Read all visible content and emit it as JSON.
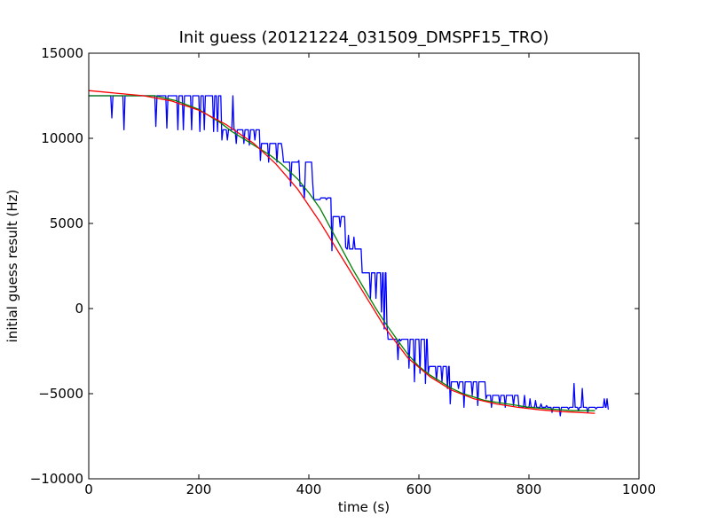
{
  "chart_data": {
    "type": "line",
    "title": "Init guess (20121224_031509_DMSPF15_TRO)",
    "xlabel": "time (s)",
    "ylabel": "initial guess result (Hz)",
    "xlim": [
      0,
      1000
    ],
    "ylim": [
      -10000,
      15000
    ],
    "xticks": [
      0,
      200,
      400,
      600,
      800,
      1000
    ],
    "yticks": [
      -10000,
      -5000,
      0,
      5000,
      10000,
      15000
    ],
    "xtick_labels": [
      "0",
      "200",
      "400",
      "600",
      "800",
      "1000"
    ],
    "ytick_labels": [
      "−10000",
      "−5000",
      "0",
      "5000",
      "10000",
      "15000"
    ],
    "grid": false,
    "legend": "none",
    "series": [
      {
        "color": "#0000ff",
        "x": [
          0,
          40,
          42,
          44,
          62,
          64,
          66,
          120,
          122,
          124,
          140,
          142,
          144,
          160,
          162,
          164,
          170,
          172,
          174,
          185,
          187,
          189,
          200,
          202,
          204,
          208,
          210,
          212,
          225,
          227,
          229,
          232,
          234,
          236,
          240,
          242,
          244,
          250,
          252,
          254,
          260,
          262,
          264,
          266,
          268,
          270,
          280,
          282,
          284,
          290,
          292,
          294,
          300,
          302,
          304,
          310,
          312,
          314,
          325,
          327,
          329,
          340,
          342,
          344,
          350,
          352,
          354,
          365,
          367,
          369,
          380,
          382,
          384,
          390,
          392,
          394,
          405,
          407,
          409,
          420,
          422,
          424,
          430,
          432,
          434,
          440,
          442,
          444,
          455,
          457,
          459,
          465,
          467,
          469,
          470,
          472,
          474,
          480,
          482,
          484,
          495,
          497,
          499,
          510,
          512,
          514,
          520,
          522,
          524,
          530,
          532,
          534,
          535,
          537,
          539,
          540,
          542,
          544,
          560,
          562,
          564,
          565,
          567,
          569,
          570,
          572,
          574,
          580,
          582,
          584,
          590,
          592,
          594,
          600,
          602,
          604,
          610,
          612,
          614,
          615,
          617,
          619,
          630,
          632,
          634,
          640,
          642,
          644,
          650,
          652,
          654,
          655,
          657,
          659,
          670,
          672,
          674,
          680,
          682,
          684,
          695,
          697,
          699,
          705,
          707,
          709,
          720,
          722,
          724,
          730,
          732,
          734,
          745,
          747,
          749,
          755,
          757,
          759,
          770,
          772,
          774,
          780,
          782,
          784,
          790,
          792,
          794,
          800,
          802,
          804,
          810,
          812,
          814,
          820,
          822,
          824,
          830,
          832,
          834,
          840,
          842,
          844,
          855,
          857,
          859,
          870,
          872,
          874,
          880,
          882,
          884,
          888,
          890,
          892,
          895,
          897,
          899,
          905,
          907,
          909,
          920,
          922,
          924,
          935,
          937,
          939,
          940,
          942,
          944,
          945
        ],
        "y": [
          12500,
          12500,
          11200,
          12500,
          12500,
          10500,
          12500,
          12500,
          10700,
          12500,
          12500,
          10600,
          12500,
          12500,
          10500,
          12500,
          12500,
          10500,
          12500,
          12500,
          10500,
          12500,
          12500,
          10400,
          12500,
          12500,
          10500,
          12500,
          12500,
          10400,
          12500,
          12500,
          10400,
          12500,
          12500,
          9900,
          10500,
          10500,
          9900,
          10500,
          10500,
          12500,
          10500,
          10500,
          9700,
          10500,
          10500,
          9700,
          10500,
          10500,
          9600,
          10500,
          10500,
          9900,
          10500,
          10500,
          8700,
          9700,
          9700,
          8600,
          9700,
          9700,
          8600,
          9700,
          9700,
          9300,
          8600,
          8600,
          7200,
          8600,
          8600,
          8700,
          7200,
          7200,
          6500,
          8600,
          8600,
          7400,
          6400,
          6400,
          6500,
          6500,
          6500,
          6400,
          6500,
          6500,
          3400,
          5400,
          5400,
          4800,
          5400,
          5400,
          3600,
          3500,
          3500,
          4300,
          3500,
          3500,
          4200,
          3500,
          3500,
          2100,
          2100,
          2100,
          600,
          2100,
          2100,
          600,
          2100,
          2100,
          -200,
          2100,
          2100,
          -1200,
          2100,
          2100,
          -1000,
          -1800,
          -1800,
          -3000,
          -1800,
          -1800,
          -1900,
          -1800,
          -1800,
          -1800,
          -1800,
          -1800,
          -3500,
          -1800,
          -1800,
          -4300,
          -1800,
          -1800,
          -3800,
          -1800,
          -1800,
          -4400,
          -1800,
          -1800,
          -3800,
          -3400,
          -3400,
          -4200,
          -3400,
          -3400,
          -4300,
          -3400,
          -3400,
          -4700,
          -3400,
          -3400,
          -5600,
          -4300,
          -4300,
          -4700,
          -4300,
          -4300,
          -5800,
          -4300,
          -4300,
          -5100,
          -4300,
          -4300,
          -5700,
          -4300,
          -4300,
          -5300,
          -5100,
          -5100,
          -5800,
          -5100,
          -5100,
          -5600,
          -5100,
          -5100,
          -5800,
          -5100,
          -5100,
          -5700,
          -5100,
          -5100,
          -5800,
          -5800,
          -5800,
          -5100,
          -5800,
          -5800,
          -5300,
          -5800,
          -5800,
          -5400,
          -5800,
          -5800,
          -5600,
          -5800,
          -5800,
          -5700,
          -5800,
          -5800,
          -6100,
          -5800,
          -5800,
          -6300,
          -5800,
          -5800,
          -5900,
          -5800,
          -5800,
          -4400,
          -5800,
          -5800,
          -6000,
          -5800,
          -5800,
          -4700,
          -5800,
          -5800,
          -6100,
          -5800,
          -5800,
          -5900,
          -5800,
          -5800,
          -5300,
          -5800,
          -5800,
          -5300,
          -5900,
          -5900
        ]
      },
      {
        "color": "#008000",
        "x": [
          0,
          120,
          160,
          200,
          240,
          260,
          300,
          330,
          350,
          380,
          400,
          420,
          440,
          460,
          480,
          500,
          520,
          540,
          560,
          580,
          600,
          620,
          640,
          660,
          680,
          700,
          720,
          740,
          760,
          780,
          800,
          840,
          880,
          920
        ],
        "y": [
          12500,
          12500,
          12200,
          11700,
          10900,
          10400,
          9600,
          9000,
          8500,
          7600,
          6800,
          5900,
          4700,
          3500,
          2300,
          1200,
          100,
          -900,
          -1800,
          -2700,
          -3400,
          -3900,
          -4300,
          -4700,
          -5000,
          -5200,
          -5400,
          -5500,
          -5600,
          -5700,
          -5800,
          -5900,
          -6000,
          -6000
        ]
      },
      {
        "color": "#ff0000",
        "x": [
          0,
          50,
          100,
          150,
          200,
          250,
          300,
          340,
          380,
          420,
          460,
          500,
          540,
          580,
          620,
          660,
          700,
          740,
          780,
          820,
          860,
          900,
          920
        ],
        "y": [
          12800,
          12650,
          12500,
          12200,
          11650,
          10800,
          9700,
          8500,
          7000,
          5100,
          3000,
          900,
          -1200,
          -2900,
          -4000,
          -4800,
          -5300,
          -5600,
          -5800,
          -5950,
          -6050,
          -6120,
          -6150
        ]
      }
    ]
  }
}
